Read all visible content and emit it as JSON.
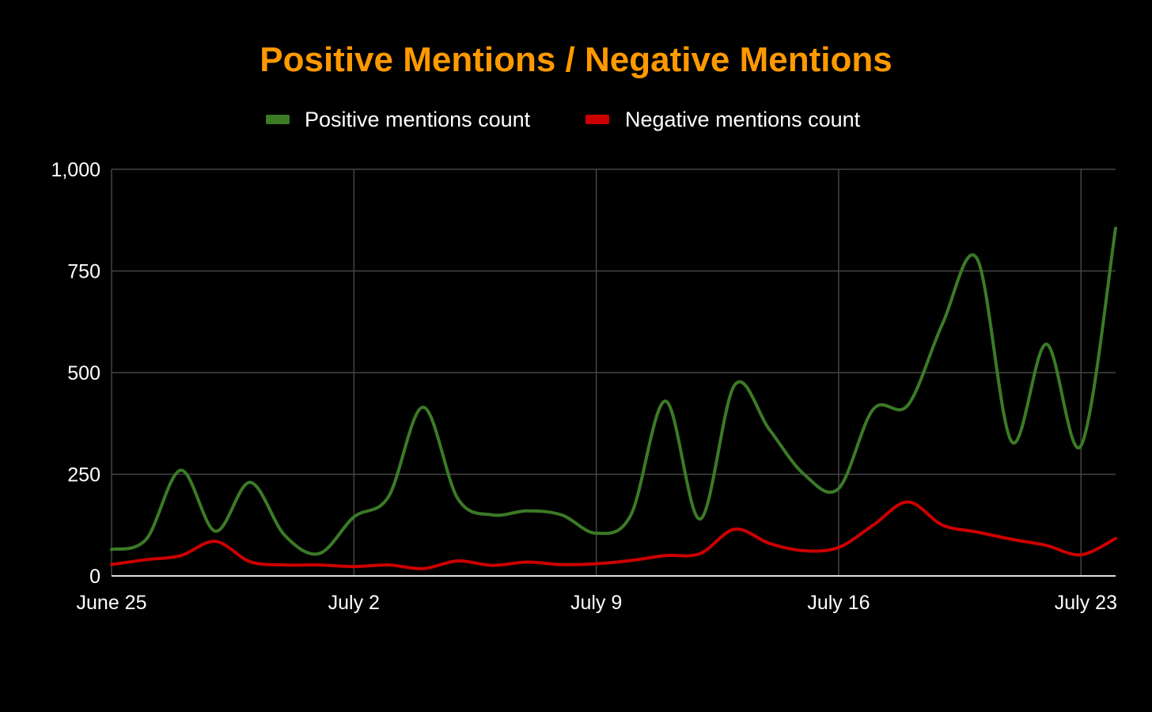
{
  "chart_data": {
    "type": "line",
    "title": "Positive Mentions / Negative Mentions",
    "xlabel": "",
    "ylabel": "",
    "ylim": [
      0,
      1000
    ],
    "yticks": [
      0,
      250,
      500,
      750,
      1000
    ],
    "ytick_labels": [
      "0",
      "250",
      "500",
      "750",
      "1,000"
    ],
    "x_ticks": [
      {
        "label": "June 25",
        "date": "2023-06-25"
      },
      {
        "label": "July 2",
        "date": "2023-07-02"
      },
      {
        "label": "July 9",
        "date": "2023-07-09"
      },
      {
        "label": "July 16",
        "date": "2023-07-16"
      },
      {
        "label": "July 23",
        "date": "2023-07-23"
      }
    ],
    "x": [
      "2023-06-25",
      "2023-06-26",
      "2023-06-27",
      "2023-06-28",
      "2023-06-29",
      "2023-06-30",
      "2023-07-01",
      "2023-07-02",
      "2023-07-03",
      "2023-07-04",
      "2023-07-05",
      "2023-07-06",
      "2023-07-07",
      "2023-07-08",
      "2023-07-09",
      "2023-07-10",
      "2023-07-11",
      "2023-07-12",
      "2023-07-13",
      "2023-07-14",
      "2023-07-15",
      "2023-07-16",
      "2023-07-17",
      "2023-07-18",
      "2023-07-19",
      "2023-07-20",
      "2023-07-21",
      "2023-07-22",
      "2023-07-23",
      "2023-07-24"
    ],
    "series": [
      {
        "name": "Positive mentions count",
        "color": "#3c7a26",
        "values": [
          65,
          90,
          260,
          110,
          230,
          100,
          55,
          145,
          195,
          415,
          190,
          150,
          160,
          150,
          105,
          150,
          430,
          140,
          470,
          360,
          250,
          215,
          410,
          420,
          620,
          780,
          330,
          570,
          320,
          855
        ]
      },
      {
        "name": "Negative mentions count",
        "color": "#cc0000",
        "values": [
          28,
          40,
          50,
          85,
          35,
          27,
          27,
          23,
          27,
          18,
          37,
          26,
          34,
          28,
          30,
          38,
          50,
          55,
          115,
          80,
          62,
          70,
          125,
          182,
          125,
          108,
          90,
          75,
          52,
          92
        ]
      }
    ],
    "grid": true,
    "legend": "top-center"
  }
}
